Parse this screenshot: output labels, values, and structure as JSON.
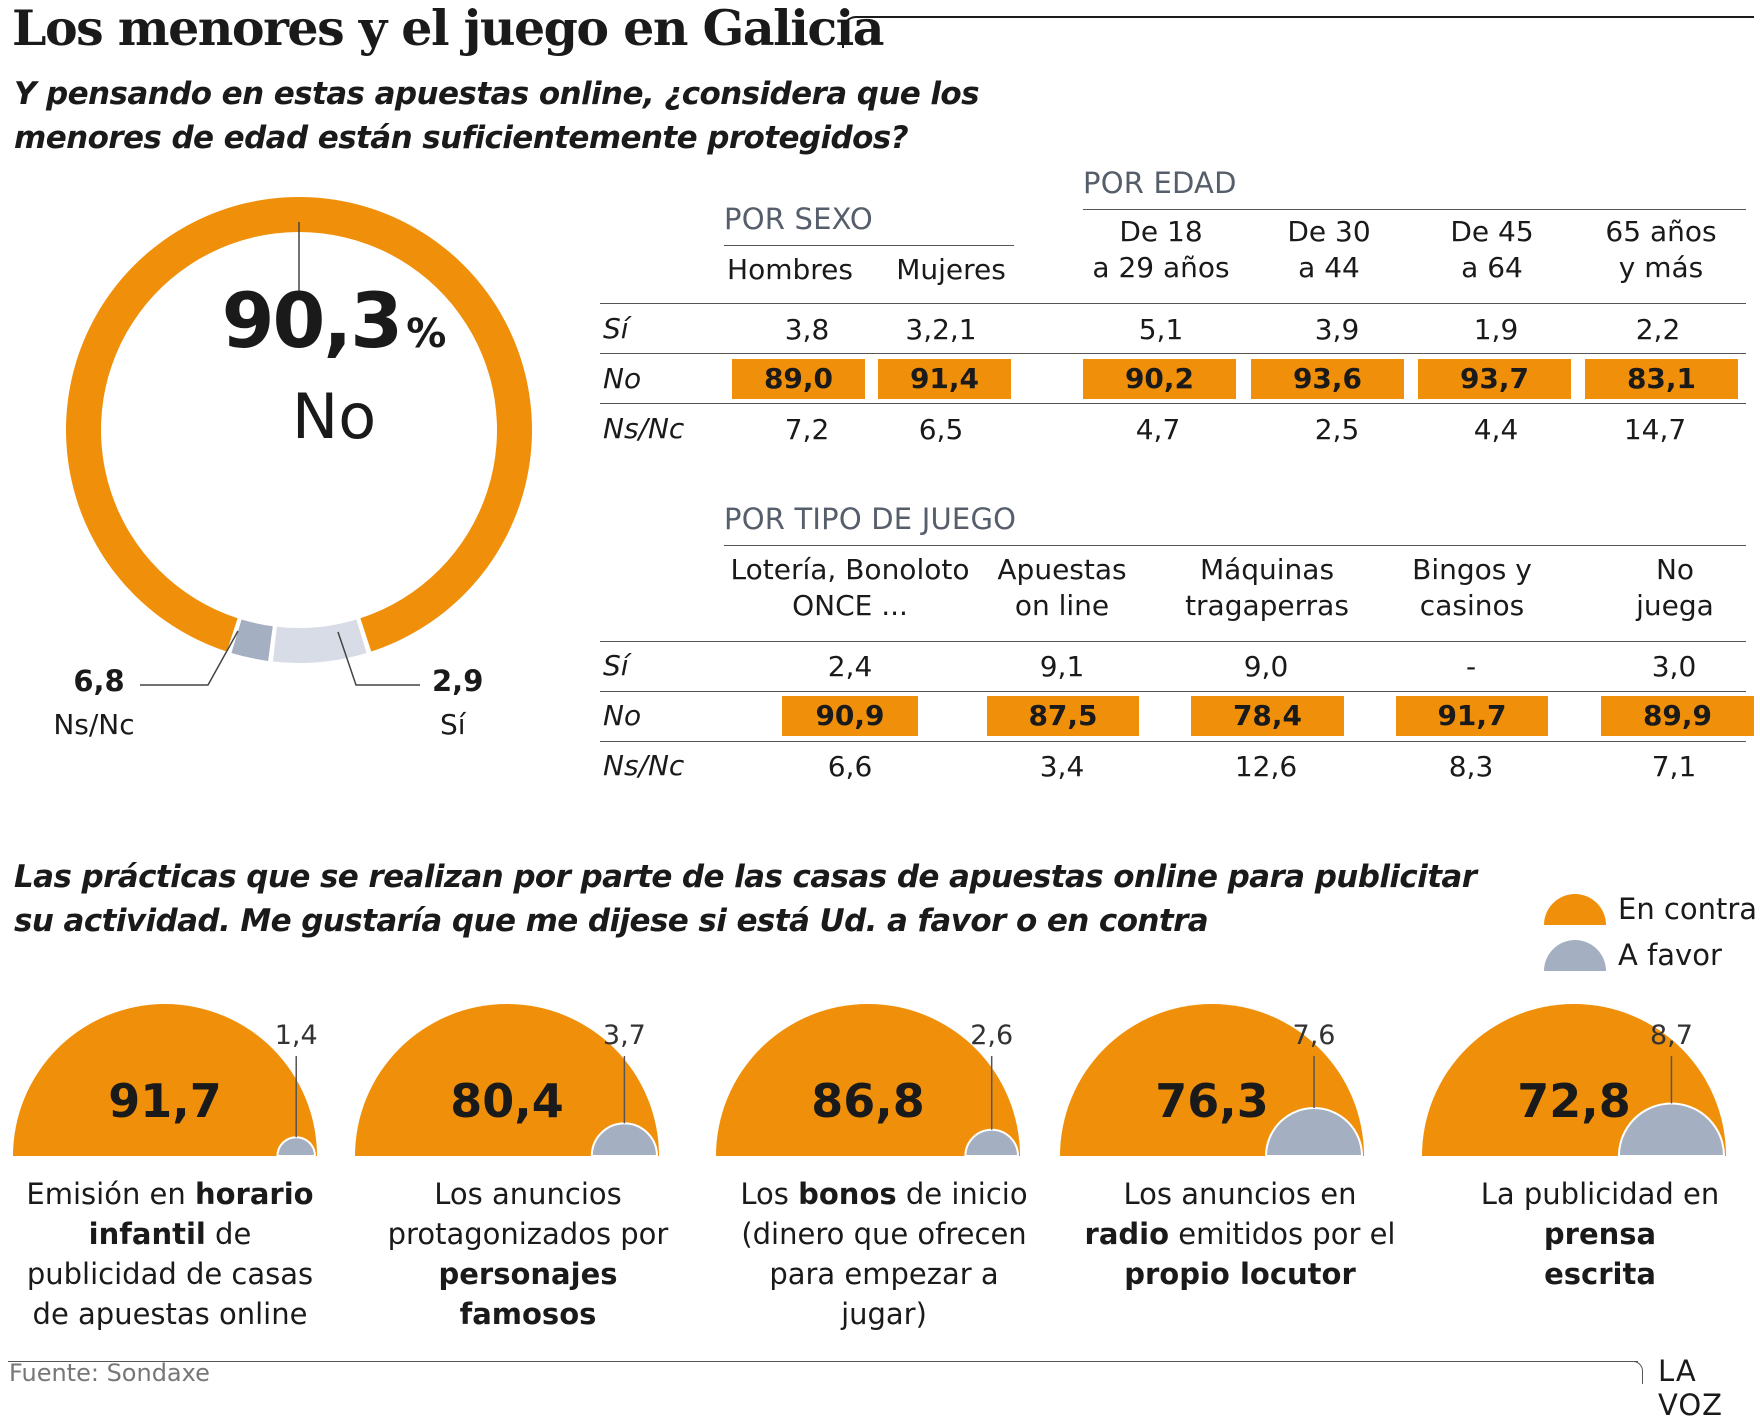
{
  "title": "Los menores y el juego en Galicia",
  "question1": [
    "Y pensando en estas apuestas online, ¿considera que los",
    "menores de edad están suficientemente protegidos?"
  ],
  "question2": [
    "Las prácticas que se realizan por parte de las casas de apuestas online para publicitar",
    "su actividad. Me gustaría que me dijese si está Ud. a favor o en contra"
  ],
  "colors": {
    "orange": "#f0900a",
    "gray_light": "#d7dce6",
    "gray_mid": "#a5afc2",
    "text": "#1a1a1a",
    "heading": "#555e6a"
  },
  "donut": {
    "main_value": "90,3",
    "main_unit": "%",
    "main_label": "No",
    "ns_value": "6,8",
    "ns_label": "Ns/Nc",
    "si_value": "2,9",
    "si_label": "Sí"
  },
  "row_labels": [
    "Sí",
    "No",
    "Ns/Nc"
  ],
  "por_sexo": {
    "heading": "POR SEXO",
    "columns": [
      "Hombres",
      "Mujeres"
    ],
    "si": [
      "3,8",
      "3,2,1"
    ],
    "no": [
      "89,0",
      "91,4"
    ],
    "ns": [
      "7,2",
      "6,5"
    ]
  },
  "por_edad": {
    "heading": "POR EDAD",
    "columns": [
      [
        "De 18",
        "a 29 años"
      ],
      [
        "De 30",
        "a 44"
      ],
      [
        "De 45",
        "a 64"
      ],
      [
        "65 años",
        "y más"
      ]
    ],
    "si": [
      "5,1",
      "3,9",
      "1,9",
      "2,2"
    ],
    "no": [
      "90,2",
      "93,6",
      "93,7",
      "83,1"
    ],
    "ns": [
      "4,7",
      "2,5",
      "4,4",
      "14,7"
    ]
  },
  "por_tipo": {
    "heading": "POR TIPO DE JUEGO",
    "columns": [
      [
        "Lotería, Bonoloto",
        "ONCE ..."
      ],
      [
        "Apuestas",
        "on line"
      ],
      [
        "Máquinas",
        "tragaperras"
      ],
      [
        "Bingos y",
        "casinos"
      ],
      [
        "No",
        "juega"
      ]
    ],
    "si": [
      "2,4",
      "9,1",
      "9,0",
      "-",
      "3,0"
    ],
    "no": [
      "90,9",
      "87,5",
      "78,4",
      "91,7",
      "89,9"
    ],
    "ns": [
      "6,6",
      "3,4",
      "12,6",
      "8,3",
      "7,1"
    ]
  },
  "legend": [
    "En contra",
    "A favor"
  ],
  "chart_data": [
    {
      "type": "pie",
      "labels": [
        "No",
        "Ns/Nc",
        "Sí"
      ],
      "values": [
        90.3,
        6.8,
        2.9
      ],
      "colors": [
        "#f0900a",
        "#d7dce6",
        "#a5afc2"
      ]
    },
    {
      "type": "table",
      "title": "POR SEXO",
      "columns": [
        "Hombres",
        "Mujeres"
      ],
      "rows": [
        "Sí",
        "No",
        "Ns/Nc"
      ],
      "values": [
        [
          "3,8",
          "3,2,1"
        ],
        [
          "89,0",
          "91,4"
        ],
        [
          "7,2",
          "6,5"
        ]
      ]
    },
    {
      "type": "table",
      "title": "POR EDAD",
      "columns": [
        "De 18 a 29 años",
        "De 30 a 44",
        "De 45 a 64",
        "65 años y más"
      ],
      "rows": [
        "Sí",
        "No",
        "Ns/Nc"
      ],
      "values": [
        [
          "5,1",
          "3,9",
          "1,9",
          "2,2"
        ],
        [
          "90,2",
          "93,6",
          "93,7",
          "83,1"
        ],
        [
          "4,7",
          "2,5",
          "4,4",
          "14,7"
        ]
      ]
    },
    {
      "type": "table",
      "title": "POR TIPO DE JUEGO",
      "columns": [
        "Lotería, Bonoloto ONCE ...",
        "Apuestas on line",
        "Máquinas tragaperras",
        "Bingos y casinos",
        "No juega"
      ],
      "rows": [
        "Sí",
        "No",
        "Ns/Nc"
      ],
      "values": [
        [
          "2,4",
          "9,1",
          "9,0",
          "-",
          "3,0"
        ],
        [
          "90,9",
          "87,5",
          "78,4",
          "91,7",
          "89,9"
        ],
        [
          "6,6",
          "3,4",
          "12,6",
          "8,3",
          "7,1"
        ]
      ]
    },
    {
      "type": "area",
      "series": [
        {
          "name": "En contra",
          "values": [
            91.7,
            80.4,
            86.8,
            76.3,
            72.8
          ]
        },
        {
          "name": "A favor",
          "values": [
            1.4,
            3.7,
            2.6,
            7.6,
            8.7
          ]
        }
      ],
      "categories": [
        "Emisión en horario infantil de publicidad de casas de apuestas online",
        "Los anuncios protagonizados por personajes famosos",
        "Los bonos de inicio (dinero que ofrecen para empezar a jugar)",
        "Los anuncios en radio emitidos por el propio locutor",
        "La publicidad en prensa escrita"
      ]
    }
  ],
  "semis": [
    {
      "contra": "91,7",
      "favor": "1,4",
      "contra_num": 91.7,
      "favor_num": 1.4,
      "caption": [
        [
          "Emisión en ",
          ""
        ],
        [
          "horario",
          "b"
        ],
        [
          "infantil",
          "b"
        ],
        [
          " de",
          ""
        ],
        [
          "publicidad de casas",
          ""
        ],
        [
          "de apuestas online",
          ""
        ]
      ]
    },
    {
      "contra": "80,4",
      "favor": "3,7",
      "contra_num": 80.4,
      "favor_num": 3.7,
      "caption": []
    },
    {
      "contra": "86,8",
      "favor": "2,6",
      "contra_num": 86.8,
      "favor_num": 2.6,
      "caption": []
    },
    {
      "contra": "76,3",
      "favor": "7,6",
      "contra_num": 76.3,
      "favor_num": 7.6,
      "caption": []
    },
    {
      "contra": "72,8",
      "favor": "8,7",
      "contra_num": 72.8,
      "favor_num": 8.7,
      "caption": []
    }
  ],
  "captions": [
    [
      [
        "Emisión en ",
        "",
        "horario",
        "b"
      ],
      [
        "infantil",
        "b",
        " de",
        ""
      ],
      [
        "publicidad de casas",
        ""
      ],
      [
        "de apuestas online",
        ""
      ]
    ],
    [
      [
        "Los anuncios",
        ""
      ],
      [
        "protagonizados por",
        ""
      ],
      [
        "personajes",
        "b"
      ],
      [
        "famosos",
        "b"
      ]
    ],
    [
      [
        "Los ",
        "",
        "bonos",
        "b",
        " de inicio",
        ""
      ],
      [
        "(dinero que ofrecen",
        ""
      ],
      [
        "para empezar a",
        ""
      ],
      [
        "jugar)",
        ""
      ]
    ],
    [
      [
        "Los anuncios en",
        ""
      ],
      [
        "radio",
        "b",
        " emitidos por el",
        ""
      ],
      [
        "propio locutor",
        "b"
      ]
    ],
    [
      [
        "La publicidad en",
        ""
      ],
      [
        "prensa",
        "b"
      ],
      [
        "escrita",
        "b"
      ]
    ]
  ],
  "footer": {
    "source": "Fuente: Sondaxe",
    "brand": "LA VOZ"
  }
}
